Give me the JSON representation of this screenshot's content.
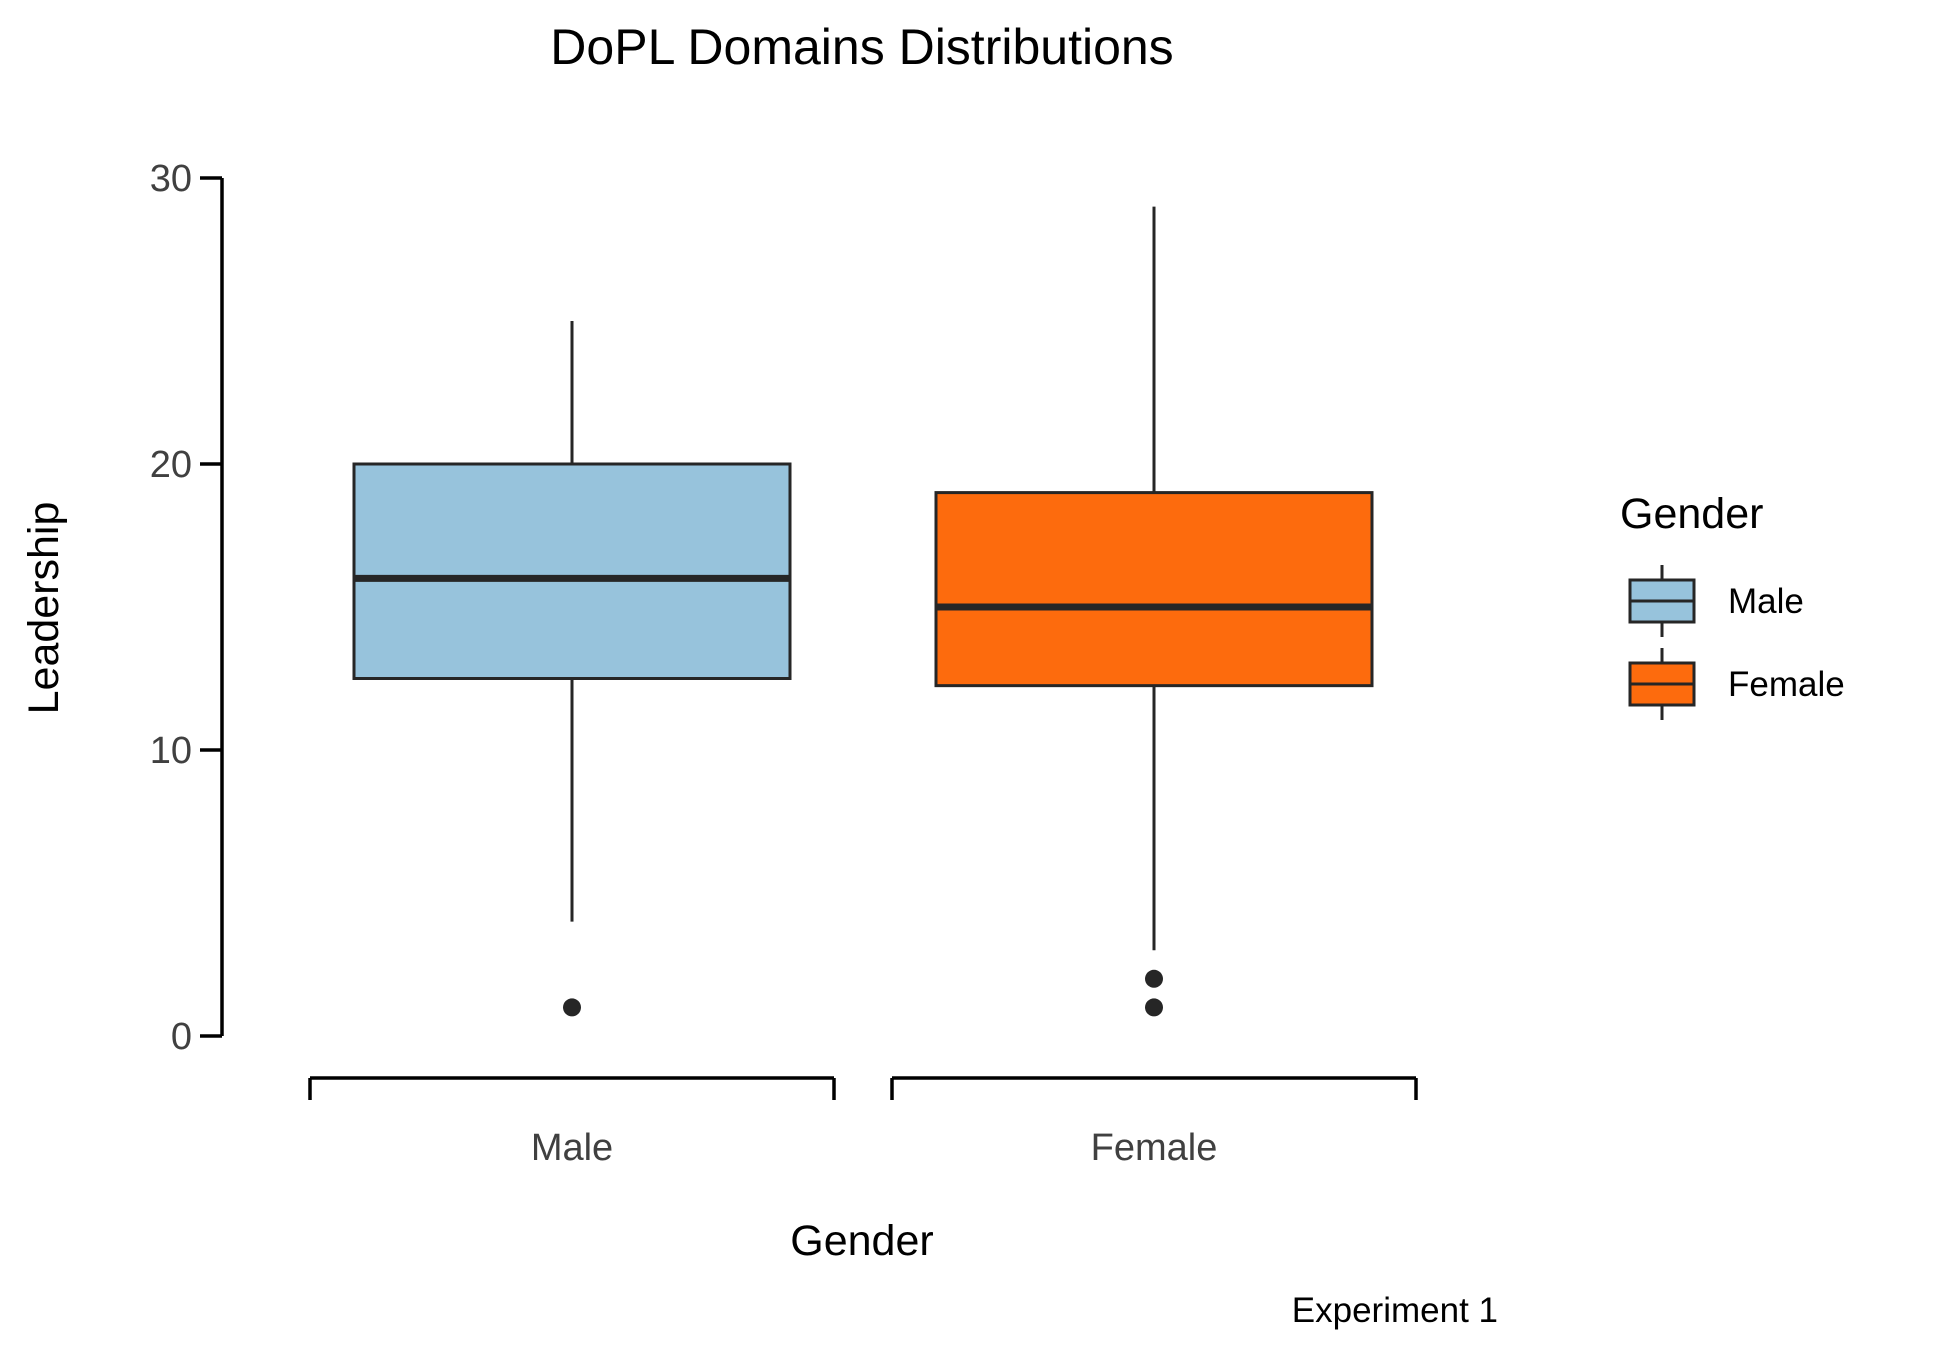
{
  "chart_data": {
    "type": "boxplot",
    "title": "DoPL Domains Distributions",
    "xlabel": "Gender",
    "ylabel": "Leadership",
    "caption": "Experiment 1",
    "ylim": [
      0,
      30
    ],
    "yticks": [
      0,
      10,
      20,
      30
    ],
    "categories": [
      "Male",
      "Female"
    ],
    "grid": false,
    "legend": {
      "title": "Gender",
      "position": "right",
      "items": [
        "Male",
        "Female"
      ]
    },
    "series": [
      {
        "name": "Male",
        "color": "#97c3dc",
        "min": 4,
        "q1": 12.5,
        "median": 16,
        "q3": 20,
        "max": 25,
        "outliers": [
          1
        ]
      },
      {
        "name": "Female",
        "color": "#fd6b0d",
        "min": 3,
        "q1": 12.25,
        "median": 15,
        "q3": 19,
        "max": 29,
        "outliers": [
          2,
          1
        ]
      }
    ]
  }
}
